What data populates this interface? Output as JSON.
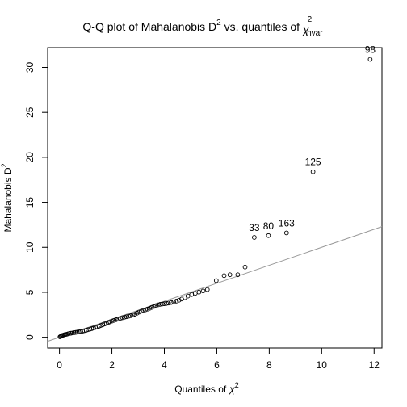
{
  "chart_data": {
    "type": "scatter",
    "title_main": "Q-Q plot of Mahalanobis D",
    "title_sup": "2",
    "title_mid": " vs. quantiles of ",
    "title_chi": "χ",
    "title_chi_sup": "2",
    "title_chi_sub": "nvar",
    "xlabel": "Quantiles of",
    "xlabel_chi": "χ",
    "xlabel_sup": "2",
    "ylabel": "Mahalanobis D",
    "ylabel_sup": "2",
    "xlim": [
      -0.45,
      12.3
    ],
    "ylim": [
      -1.2,
      32.2
    ],
    "xticks": [
      0,
      2,
      4,
      6,
      8,
      10,
      12
    ],
    "yticks": [
      0,
      5,
      10,
      15,
      20,
      25,
      30
    ],
    "reference_line": {
      "from": [
        0,
        0
      ],
      "to": [
        12.3,
        12.3
      ]
    },
    "points": [
      [
        0.02,
        0.05
      ],
      [
        0.05,
        0.1
      ],
      [
        0.08,
        0.15
      ],
      [
        0.11,
        0.2
      ],
      [
        0.15,
        0.24
      ],
      [
        0.19,
        0.28
      ],
      [
        0.23,
        0.31
      ],
      [
        0.28,
        0.34
      ],
      [
        0.33,
        0.38
      ],
      [
        0.38,
        0.42
      ],
      [
        0.44,
        0.45
      ],
      [
        0.5,
        0.48
      ],
      [
        0.56,
        0.51
      ],
      [
        0.62,
        0.54
      ],
      [
        0.68,
        0.57
      ],
      [
        0.74,
        0.6
      ],
      [
        0.81,
        0.64
      ],
      [
        0.88,
        0.68
      ],
      [
        0.95,
        0.73
      ],
      [
        1.02,
        0.78
      ],
      [
        1.09,
        0.84
      ],
      [
        1.16,
        0.9
      ],
      [
        1.23,
        0.96
      ],
      [
        1.3,
        1.02
      ],
      [
        1.37,
        1.09
      ],
      [
        1.44,
        1.16
      ],
      [
        1.51,
        1.23
      ],
      [
        1.58,
        1.31
      ],
      [
        1.65,
        1.39
      ],
      [
        1.72,
        1.47
      ],
      [
        1.79,
        1.55
      ],
      [
        1.86,
        1.64
      ],
      [
        1.93,
        1.72
      ],
      [
        2.0,
        1.8
      ],
      [
        2.08,
        1.88
      ],
      [
        2.16,
        1.96
      ],
      [
        2.24,
        2.03
      ],
      [
        2.32,
        2.1
      ],
      [
        2.4,
        2.17
      ],
      [
        2.48,
        2.23
      ],
      [
        2.56,
        2.28
      ],
      [
        2.64,
        2.34
      ],
      [
        2.72,
        2.4
      ],
      [
        2.8,
        2.48
      ],
      [
        2.88,
        2.56
      ],
      [
        2.96,
        2.68
      ],
      [
        3.04,
        2.8
      ],
      [
        3.12,
        2.9
      ],
      [
        3.2,
        2.98
      ],
      [
        3.28,
        3.05
      ],
      [
        3.36,
        3.13
      ],
      [
        3.44,
        3.22
      ],
      [
        3.52,
        3.32
      ],
      [
        3.6,
        3.42
      ],
      [
        3.68,
        3.52
      ],
      [
        3.76,
        3.6
      ],
      [
        3.84,
        3.66
      ],
      [
        3.92,
        3.7
      ],
      [
        4.0,
        3.73
      ],
      [
        4.08,
        3.76
      ],
      [
        4.16,
        3.8
      ],
      [
        4.26,
        3.86
      ],
      [
        4.36,
        3.93
      ],
      [
        4.46,
        4.02
      ],
      [
        4.56,
        4.12
      ],
      [
        4.66,
        4.25
      ],
      [
        4.78,
        4.4
      ],
      [
        4.9,
        4.58
      ],
      [
        5.04,
        4.75
      ],
      [
        5.18,
        4.88
      ],
      [
        5.32,
        5.02
      ],
      [
        5.48,
        5.15
      ],
      [
        5.64,
        5.3
      ],
      [
        5.98,
        6.3
      ],
      [
        6.28,
        6.85
      ],
      [
        6.5,
        6.95
      ],
      [
        6.8,
        6.95
      ],
      [
        7.08,
        7.8
      ],
      [
        7.43,
        11.1
      ],
      [
        7.97,
        11.3
      ],
      [
        8.66,
        11.6
      ],
      [
        9.67,
        18.4
      ],
      [
        11.85,
        30.9
      ]
    ],
    "labels": [
      {
        "text": "33",
        "x": 7.43,
        "y": 11.1
      },
      {
        "text": "80",
        "x": 7.97,
        "y": 11.3
      },
      {
        "text": "163",
        "x": 8.66,
        "y": 11.6
      },
      {
        "text": "125",
        "x": 9.67,
        "y": 18.4
      },
      {
        "text": "98",
        "x": 11.85,
        "y": 30.9
      }
    ],
    "colors": {
      "points": "#000000",
      "reference_line": "#999999",
      "axes": "#000000"
    }
  }
}
